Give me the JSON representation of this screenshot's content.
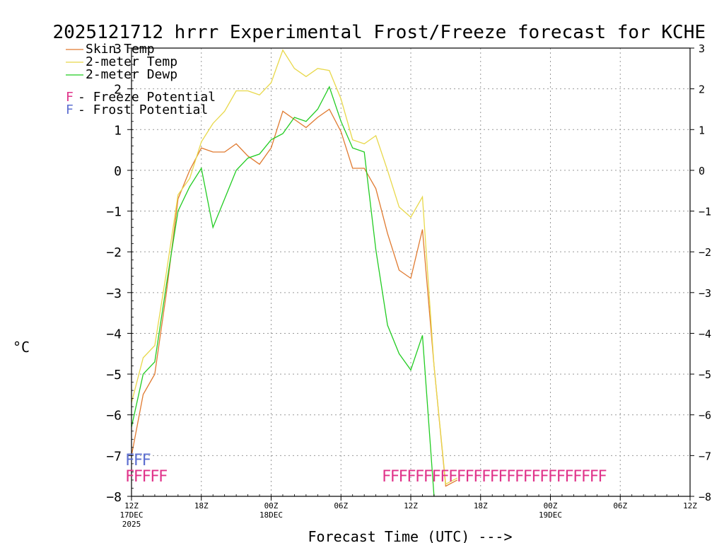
{
  "chart_data": {
    "type": "line",
    "title": "2025121712 hrrr Experimental Frost/Freeze forecast for KCHE",
    "ylabel": "°C",
    "xlabel": "Forecast Time (UTC) --->",
    "ylim": [
      -8,
      3
    ],
    "yticks": [
      3,
      2,
      1,
      0,
      -1,
      -2,
      -3,
      -4,
      -5,
      -6,
      -7,
      -8
    ],
    "xlim": [
      0,
      48
    ],
    "x_ticks": [
      {
        "x": 0,
        "label": "12Z",
        "sub1": "17DEC",
        "sub2": "2025"
      },
      {
        "x": 6,
        "label": "18Z",
        "sub1": "",
        "sub2": ""
      },
      {
        "x": 12,
        "label": "00Z",
        "sub1": "18DEC",
        "sub2": ""
      },
      {
        "x": 18,
        "label": "06Z",
        "sub1": "",
        "sub2": ""
      },
      {
        "x": 24,
        "label": "12Z",
        "sub1": "",
        "sub2": ""
      },
      {
        "x": 30,
        "label": "18Z",
        "sub1": "",
        "sub2": ""
      },
      {
        "x": 36,
        "label": "00Z",
        "sub1": "19DEC",
        "sub2": ""
      },
      {
        "x": 42,
        "label": "06Z",
        "sub1": "",
        "sub2": ""
      },
      {
        "x": 48,
        "label": "12Z",
        "sub1": "",
        "sub2": ""
      }
    ],
    "grid": true,
    "legend_position": "top-left",
    "series": [
      {
        "name": "Skin Temp",
        "color": "#e07a30",
        "x": [
          0,
          1,
          2,
          3,
          4,
          5,
          6,
          7,
          8,
          9,
          10,
          11,
          12,
          13,
          14,
          15,
          16,
          17,
          18,
          19,
          20,
          21,
          22,
          23,
          24,
          25,
          26,
          27,
          28
        ],
        "values": [
          -7.0,
          -5.5,
          -5.0,
          -3.0,
          -0.7,
          0.0,
          0.55,
          0.45,
          0.45,
          0.65,
          0.35,
          0.15,
          0.55,
          1.45,
          1.25,
          1.05,
          1.3,
          1.5,
          0.95,
          0.05,
          0.05,
          -0.45,
          -1.55,
          -2.45,
          -2.65,
          -1.45,
          -4.8,
          -7.75,
          -7.6
        ]
      },
      {
        "name": "2-meter Temp",
        "color": "#e8d84a",
        "x": [
          0,
          1,
          2,
          3,
          4,
          5,
          6,
          7,
          8,
          9,
          10,
          11,
          12,
          13,
          14,
          15,
          16,
          17,
          18,
          19,
          20,
          21,
          22,
          23,
          24,
          25,
          26,
          27,
          28
        ],
        "values": [
          -5.7,
          -4.6,
          -4.3,
          -2.5,
          -0.6,
          -0.2,
          0.7,
          1.15,
          1.45,
          1.95,
          1.95,
          1.85,
          2.15,
          2.95,
          2.5,
          2.3,
          2.5,
          2.45,
          1.75,
          0.75,
          0.65,
          0.85,
          0.0,
          -0.9,
          -1.15,
          -0.65,
          -4.8,
          -7.7,
          -7.55
        ]
      },
      {
        "name": "2-meter Dewp",
        "color": "#22cc22",
        "x": [
          0,
          1,
          2,
          3,
          4,
          5,
          6,
          7,
          8,
          9,
          10,
          11,
          12,
          13,
          14,
          15,
          16,
          17,
          18,
          19,
          20,
          21,
          22,
          23,
          24,
          25,
          26
        ],
        "values": [
          -6.3,
          -5.0,
          -4.7,
          -2.8,
          -1.0,
          -0.4,
          0.05,
          -1.4,
          -0.7,
          0.0,
          0.3,
          0.4,
          0.75,
          0.9,
          1.3,
          1.2,
          1.5,
          2.05,
          1.2,
          0.55,
          0.45,
          -1.95,
          -3.8,
          -4.5,
          -4.9,
          -4.05,
          -8.0
        ]
      }
    ],
    "legend_extra": [
      {
        "marker": "F",
        "marker_color": "#e0338a",
        "text": " - Freeze Potential"
      },
      {
        "marker": "F",
        "marker_color": "#5d6fd0",
        "text": " - Frost Potential"
      }
    ],
    "freeze_flags_start": "FFFFF",
    "freeze_flags_end": "FFFFFFFFFFFFFFFFFFFFFFFFFFF",
    "frost_flags": "FFF",
    "freeze_color": "#e0338a",
    "frost_color": "#5d6fd0"
  }
}
